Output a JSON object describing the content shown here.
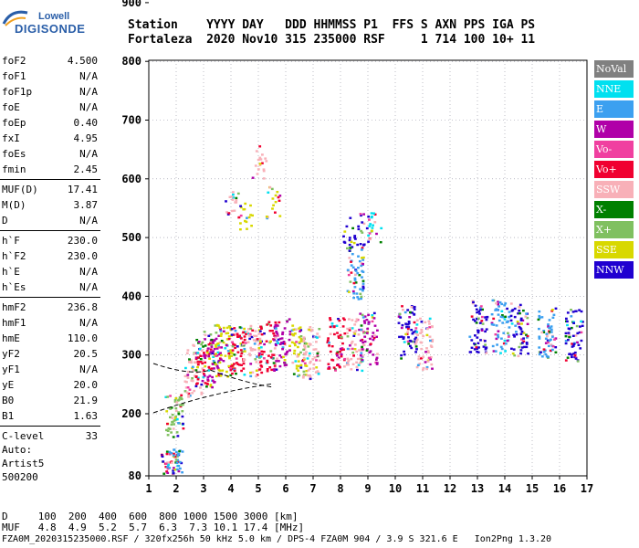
{
  "logo": {
    "line1": "Lowell",
    "line2": "DIGISONDE"
  },
  "header": {
    "row1": "Station    YYYY DAY   DDD HHMMSS P1  FFS S AXN PPS IGA PS",
    "row2": "Fortaleza  2020 Nov10 315 235000 RSF     1 714 100 10+ 11"
  },
  "params": [
    {
      "label": "foF2",
      "value": "4.500"
    },
    {
      "label": "foF1",
      "value": "N/A"
    },
    {
      "label": "foF1p",
      "value": "N/A"
    },
    {
      "label": "foE",
      "value": "N/A"
    },
    {
      "label": "foEp",
      "value": "0.40"
    },
    {
      "label": "fxI",
      "value": "4.95"
    },
    {
      "label": "foEs",
      "value": "N/A"
    },
    {
      "label": "fmin",
      "value": "2.45"
    },
    {
      "label": "MUF(D)",
      "value": "17.41"
    },
    {
      "label": "M(D)",
      "value": "3.87"
    },
    {
      "label": "D",
      "value": "N/A"
    },
    {
      "label": "h`F",
      "value": "230.0"
    },
    {
      "label": "h`F2",
      "value": "230.0"
    },
    {
      "label": "h`E",
      "value": "N/A"
    },
    {
      "label": "h`Es",
      "value": "N/A"
    },
    {
      "label": "hmF2",
      "value": "236.8"
    },
    {
      "label": "hmF1",
      "value": "N/A"
    },
    {
      "label": "hmE",
      "value": "110.0"
    },
    {
      "label": "yF2",
      "value": "20.5"
    },
    {
      "label": "yF1",
      "value": "N/A"
    },
    {
      "label": "yE",
      "value": "20.0"
    },
    {
      "label": "B0",
      "value": "21.9"
    },
    {
      "label": "B1",
      "value": "1.63"
    },
    {
      "label": "C-level",
      "value": "33"
    }
  ],
  "autoscale": {
    "line1": "Auto:",
    "line2": "Artist5",
    "line3": "500200"
  },
  "legend": [
    {
      "label": "NoVal",
      "color": "#808080"
    },
    {
      "label": "NNE",
      "color": "#00e0f0"
    },
    {
      "label": "E",
      "color": "#3ca0f0"
    },
    {
      "label": "W",
      "color": "#b000a8"
    },
    {
      "label": "Vo-",
      "color": "#f040a0"
    },
    {
      "label": "Vo+",
      "color": "#f00030"
    },
    {
      "label": "SSW",
      "color": "#f8b0b8"
    },
    {
      "label": "X-",
      "color": "#008000"
    },
    {
      "label": "X+",
      "color": "#80c060"
    },
    {
      "label": "SSE",
      "color": "#d8d800"
    },
    {
      "label": "NNW",
      "color": "#2000d0"
    }
  ],
  "chart_data": {
    "type": "scatter",
    "x_ticks": [
      "1",
      "2",
      "3",
      "4",
      "5",
      "6",
      "7",
      "8",
      "9",
      "10",
      "11",
      "12",
      "13",
      "14",
      "15",
      "16",
      "17"
    ],
    "y_ticks": [
      "80",
      "200",
      "300",
      "400",
      "500",
      "600",
      "700",
      "800",
      "900"
    ],
    "xlim": [
      1,
      17
    ],
    "ylim_label_range": [
      80,
      900
    ],
    "grid": "dotted",
    "clusters": [
      {
        "x": 1.75,
        "y": 85,
        "color": "#f00030"
      },
      {
        "x": 1.9,
        "y": 88,
        "color": "#3ca0f0"
      },
      {
        "x": 1.9,
        "y": 200,
        "color": "#80c060"
      },
      {
        "x": 2.6,
        "y": 275,
        "color": "#f8b0b8"
      },
      {
        "x": 3.0,
        "y": 290,
        "color": "#f00030"
      },
      {
        "x": 3.3,
        "y": 300,
        "color": "#b000a8"
      },
      {
        "x": 3.7,
        "y": 310,
        "color": "#d8d800"
      },
      {
        "x": 4.2,
        "y": 305,
        "color": "#f00030"
      },
      {
        "x": 4.7,
        "y": 310,
        "color": "#f8b0b8"
      },
      {
        "x": 5.3,
        "y": 315,
        "color": "#f00030"
      },
      {
        "x": 5.8,
        "y": 320,
        "color": "#b000a8"
      },
      {
        "x": 6.4,
        "y": 310,
        "color": "#d8d800"
      },
      {
        "x": 6.9,
        "y": 305,
        "color": "#f8b0b8"
      },
      {
        "x": 7.8,
        "y": 320,
        "color": "#f00030"
      },
      {
        "x": 8.5,
        "y": 320,
        "color": "#f8b0b8"
      },
      {
        "x": 9.0,
        "y": 330,
        "color": "#b000a8"
      },
      {
        "x": 10.4,
        "y": 340,
        "color": "#2000d0"
      },
      {
        "x": 11.0,
        "y": 320,
        "color": "#f8b0b8"
      },
      {
        "x": 13.0,
        "y": 350,
        "color": "#2000d0"
      },
      {
        "x": 13.8,
        "y": 350,
        "color": "#3ca0f0"
      },
      {
        "x": 14.5,
        "y": 345,
        "color": "#2000d0"
      },
      {
        "x": 15.5,
        "y": 340,
        "color": "#3ca0f0"
      },
      {
        "x": 16.5,
        "y": 335,
        "color": "#2000d0"
      },
      {
        "x": 4.0,
        "y": 560,
        "color": "#f8b0b8"
      },
      {
        "x": 4.5,
        "y": 540,
        "color": "#d8d800"
      },
      {
        "x": 5.0,
        "y": 630,
        "color": "#f8b0b8"
      },
      {
        "x": 5.5,
        "y": 560,
        "color": "#d8d800"
      },
      {
        "x": 8.3,
        "y": 510,
        "color": "#2000d0"
      },
      {
        "x": 8.8,
        "y": 515,
        "color": "#2000d0"
      },
      {
        "x": 9.2,
        "y": 520,
        "color": "#00e0f0"
      },
      {
        "x": 8.5,
        "y": 440,
        "color": "#3ca0f0"
      }
    ]
  },
  "footer": {
    "d_row": "D     100  200  400  600  800 1000 1500 3000 [km]",
    "muf_row": "MUF   4.8  4.9  5.2  5.7  6.3  7.3 10.1 17.4 [MHz]",
    "status_line": "FZA0M_2020315235000.RSF / 320fx256h 50 kHz 5.0 km / DPS-4 FZA0M 904 / 3.9 S 321.6 E   Ion2Png 1.3.20"
  }
}
